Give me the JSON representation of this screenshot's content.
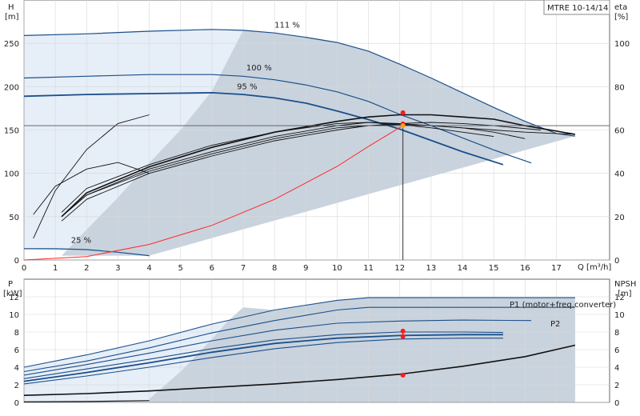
{
  "title": "MTRE 10-14/14",
  "chart_data": [
    {
      "type": "line",
      "xlabel": "Q [m³/h]",
      "ylabel_left": [
        "H",
        "[m]"
      ],
      "ylabel_right": [
        "eta",
        "[%]"
      ],
      "xlim": [
        0,
        18.7
      ],
      "ylim_left": [
        0,
        300
      ],
      "ylim_right": [
        0,
        120
      ],
      "x_ticks": [
        0,
        1,
        2,
        3,
        4,
        5,
        6,
        7,
        8,
        9,
        10,
        11,
        12,
        13,
        14,
        15,
        16,
        17
      ],
      "y_ticks_left": [
        0,
        50,
        100,
        150,
        200,
        250
      ],
      "y_ticks_right": [
        0,
        20,
        40,
        60,
        80,
        100
      ],
      "colors": {
        "curve": "#1b4f8a",
        "region": "#c9d3de",
        "region_light": "#e6eef8",
        "system": "#ff2a2a",
        "point": "#ff1a1a",
        "duty_point": "#f4a21a"
      },
      "series": [
        {
          "name": "111 %",
          "x": [
            0,
            2,
            4,
            6,
            7,
            8,
            9,
            10,
            11,
            12,
            13,
            14,
            15,
            16,
            17,
            17.6
          ],
          "y": [
            259,
            261,
            264,
            266,
            265,
            262,
            257,
            251,
            241,
            226,
            210,
            193,
            176,
            160,
            146,
            143
          ]
        },
        {
          "name": "100 %",
          "x": [
            0,
            2,
            4,
            6,
            7,
            8,
            9,
            10,
            11,
            12,
            13,
            14,
            15,
            16.2
          ],
          "y": [
            210,
            212,
            214,
            214,
            212,
            208,
            202,
            194,
            183,
            168,
            155,
            141,
            127,
            112
          ]
        },
        {
          "name": "95 %",
          "x": [
            0,
            2,
            4,
            6,
            7,
            8,
            9,
            10,
            11,
            12,
            13,
            14,
            15.3
          ],
          "y": [
            189,
            191,
            192,
            193,
            191,
            187,
            181,
            172,
            162,
            151,
            138,
            125,
            110
          ]
        },
        {
          "name": "25 %",
          "x": [
            0,
            1,
            2,
            3,
            4
          ],
          "y": [
            13,
            13,
            12,
            9,
            5
          ]
        }
      ],
      "efficiency_curves": [
        {
          "x": [
            0.3,
            1,
            2,
            3,
            4
          ],
          "y": [
            10,
            32,
            51,
            63,
            67
          ]
        },
        {
          "x": [
            0.3,
            1,
            2,
            3,
            4
          ],
          "y": [
            21,
            34,
            42,
            45,
            40
          ]
        },
        {
          "x": [
            1.2,
            2,
            4,
            6,
            8,
            10,
            11,
            12,
            13,
            14,
            15,
            16
          ],
          "y": [
            20,
            30,
            41,
            49,
            56,
            61,
            62,
            62.5,
            62,
            61,
            59,
            56
          ]
        },
        {
          "x": [
            1.2,
            2,
            4,
            6,
            8,
            10,
            11,
            12,
            13,
            14,
            15,
            16.5
          ],
          "y": [
            18,
            28,
            40,
            48,
            55,
            60,
            62,
            63,
            63.5,
            63,
            62,
            60
          ]
        },
        {
          "x": [
            1.2,
            2,
            4,
            6,
            8,
            10,
            11,
            12,
            13,
            14,
            15,
            16,
            17.6
          ],
          "y": [
            20,
            31,
            43,
            52,
            59,
            64,
            66,
            67,
            67,
            66,
            65,
            62,
            58
          ]
        },
        {
          "x": [
            1.2,
            2,
            4,
            6,
            8,
            10,
            11,
            12,
            13,
            14,
            15
          ],
          "y": [
            22,
            33,
            44,
            53,
            59,
            63,
            63.5,
            62.5,
            61,
            59,
            57
          ]
        },
        {
          "x": [
            1.2,
            2,
            4,
            6,
            8,
            10,
            11,
            12,
            13,
            14,
            15,
            16,
            17.6
          ],
          "y": [
            20,
            30,
            42,
            50,
            57,
            62,
            63.5,
            63,
            62,
            61,
            60,
            59,
            58
          ]
        }
      ],
      "system_curve": {
        "x": [
          0,
          2,
          4,
          6,
          8,
          10,
          11,
          12.1
        ],
        "y": [
          0,
          4,
          18,
          40,
          70,
          108,
          131,
          155
        ]
      },
      "duty_point": {
        "q": 12.1,
        "h": 155
      },
      "markers": [
        {
          "q": 12.1,
          "h": 170
        },
        {
          "q": 12.1,
          "h": 157
        }
      ]
    },
    {
      "type": "line",
      "xlabel": "",
      "ylabel_left": [
        "P",
        "[kW]"
      ],
      "ylabel_right": [
        "NPSH",
        "[m]"
      ],
      "xlim": [
        0,
        18.7
      ],
      "ylim": [
        0,
        14
      ],
      "y_ticks": [
        0,
        2,
        4,
        6,
        8,
        10,
        12
      ],
      "series": [
        {
          "name": "P1 (motor+freq.converter)",
          "x": [
            0,
            2,
            4,
            6,
            8,
            10,
            11,
            12,
            14,
            16,
            17.6
          ],
          "y": [
            4,
            5.4,
            7,
            8.9,
            10.5,
            11.6,
            11.9,
            11.9,
            11.9,
            11.9,
            11.9
          ]
        },
        {
          "name": "P2",
          "x": [
            0,
            2,
            4,
            6,
            8,
            10,
            11,
            12,
            14,
            16,
            17.6
          ],
          "y": [
            3.5,
            4.7,
            6.2,
            7.9,
            9.3,
            10.5,
            10.8,
            10.8,
            10.8,
            10.8,
            10.8
          ]
        },
        {
          "x": [
            0,
            2,
            4,
            6,
            8,
            10,
            12,
            14,
            16.2
          ],
          "y": [
            3.1,
            4.3,
            5.6,
            7,
            8.2,
            9,
            9.25,
            9.35,
            9.3
          ]
        },
        {
          "x": [
            0,
            2,
            4,
            6,
            8,
            10,
            12,
            14,
            15.3
          ],
          "y": [
            2.7,
            3.8,
            4.9,
            6.1,
            7.1,
            7.7,
            8.0,
            8.0,
            7.95
          ]
        },
        {
          "x": [
            0,
            2,
            4,
            6,
            8,
            10,
            12,
            14,
            15.3
          ],
          "y": [
            2.4,
            3.4,
            4.5,
            5.7,
            6.7,
            7.3,
            7.6,
            7.7,
            7.7
          ]
        },
        {
          "x": [
            0,
            2,
            4,
            6,
            8,
            10,
            12,
            14,
            15.3
          ],
          "y": [
            2.1,
            3.0,
            4.0,
            5.1,
            6.1,
            6.8,
            7.2,
            7.3,
            7.3
          ]
        }
      ],
      "npsh": {
        "x": [
          0,
          2,
          4,
          6,
          8,
          10,
          12,
          14,
          16,
          17.6
        ],
        "y": [
          0.8,
          1.0,
          1.3,
          1.7,
          2.1,
          2.6,
          3.2,
          4.1,
          5.2,
          6.5
        ]
      },
      "npsh_low": {
        "x": [
          0,
          2,
          4
        ],
        "y": [
          0.05,
          0.1,
          0.2
        ]
      },
      "markers": [
        {
          "q": 12.1,
          "p": 8.1
        },
        {
          "q": 12.1,
          "p": 7.5
        },
        {
          "q": 12.1,
          "npsh": 3.1
        }
      ]
    }
  ]
}
